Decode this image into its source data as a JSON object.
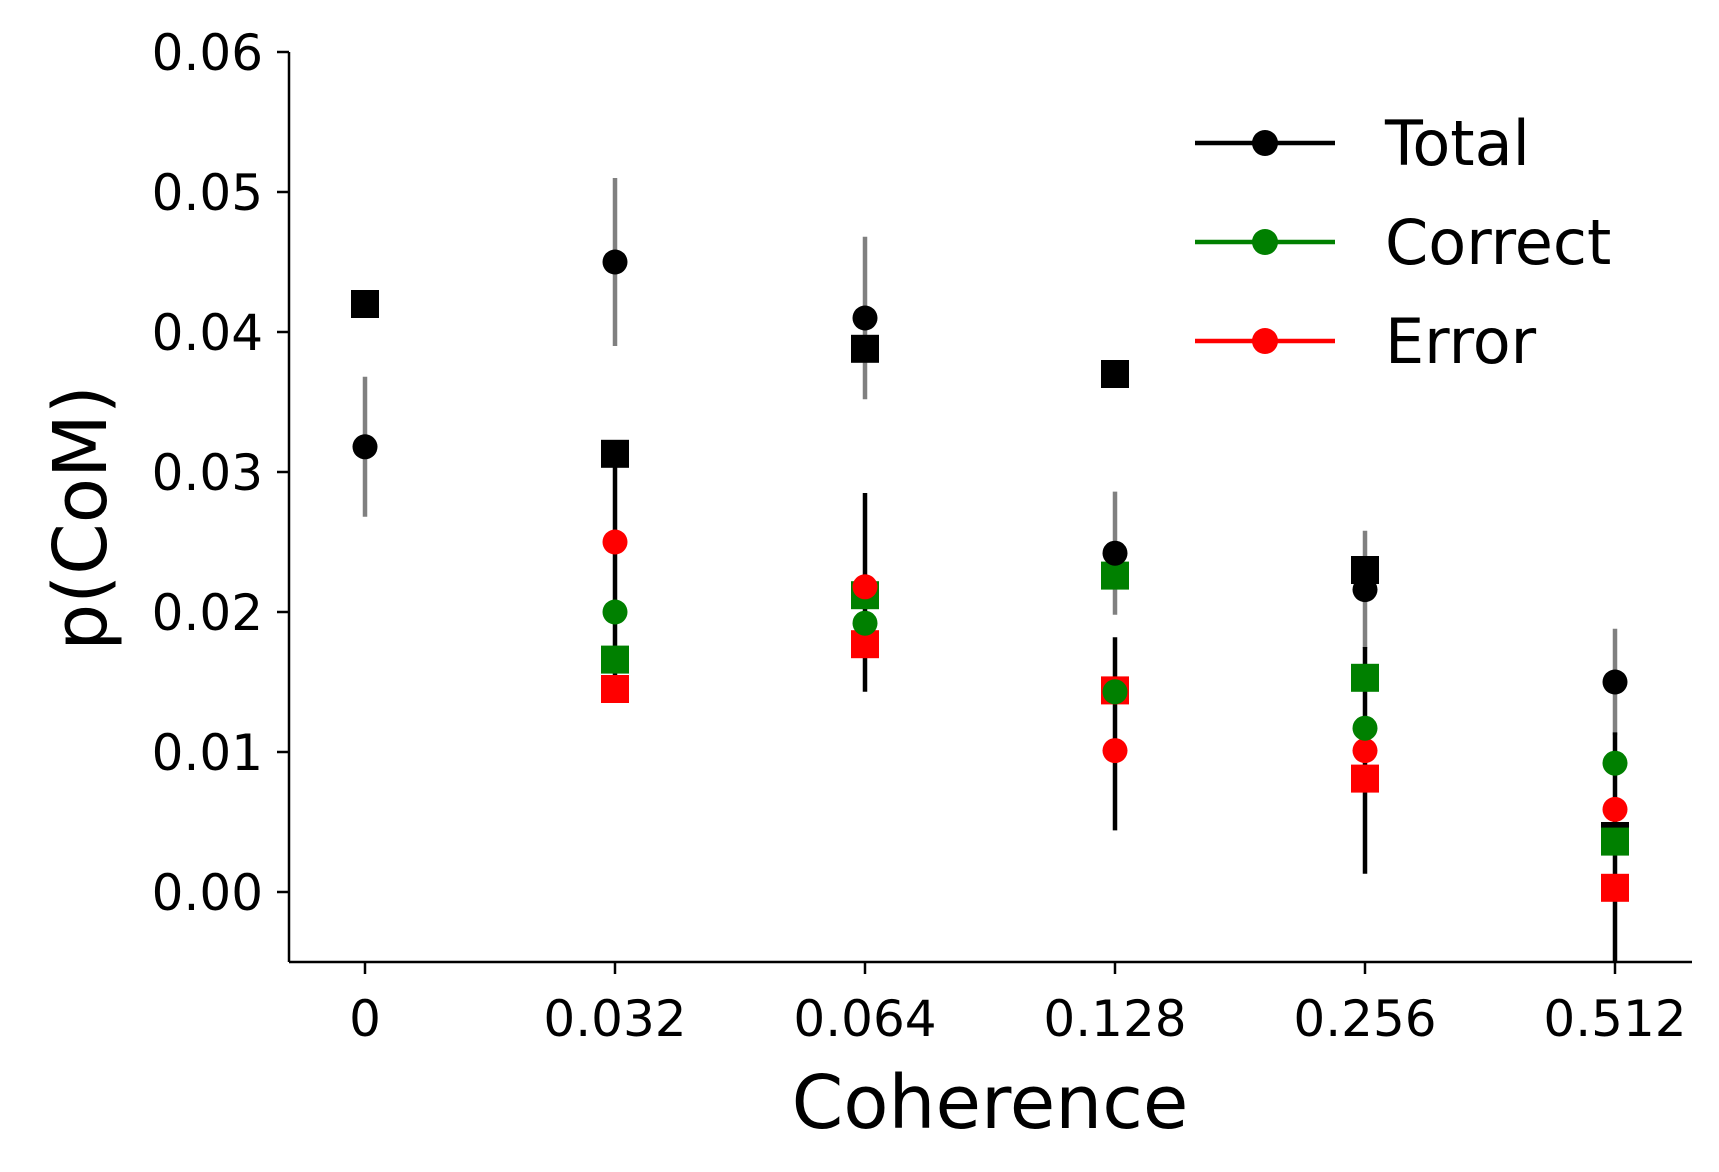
{
  "chart_data": {
    "type": "scatter",
    "xlabel": "Coherence",
    "ylabel": "p(CoM)",
    "categories": [
      "0",
      "0.032",
      "0.064",
      "0.128",
      "0.256",
      "0.512"
    ],
    "ylim": [
      -0.005,
      0.06
    ],
    "yticks": [
      0.0,
      0.01,
      0.02,
      0.03,
      0.04,
      0.05,
      0.06
    ],
    "ytick_labels": [
      "0.00",
      "0.01",
      "0.02",
      "0.03",
      "0.04",
      "0.05",
      "0.06"
    ],
    "grid": false,
    "legend_position": "top-right",
    "legend": [
      {
        "name": "Total",
        "color": "#000000"
      },
      {
        "name": "Correct",
        "color": "#008000"
      },
      {
        "name": "Error",
        "color": "#ff0000"
      }
    ],
    "series": [
      {
        "name": "Total",
        "marker": "circle",
        "color": "#000000",
        "values": [
          0.0318,
          0.045,
          0.041,
          0.0242,
          0.0216,
          0.015
        ],
        "error_low": [
          0.0268,
          0.039,
          0.0352,
          0.0198,
          0.0174,
          0.0112
        ],
        "error_high": [
          0.0368,
          0.051,
          0.0468,
          0.0286,
          0.0258,
          0.0188
        ],
        "error_color": "#808080"
      },
      {
        "name": "Correct",
        "marker": "circle",
        "color": "#008000",
        "values": [
          null,
          0.02,
          0.0192,
          0.0143,
          0.0117,
          0.0092
        ]
      },
      {
        "name": "Error",
        "marker": "circle",
        "color": "#ff0000",
        "values": [
          null,
          0.025,
          0.0218,
          0.0101,
          0.0101,
          0.0059
        ]
      },
      {
        "marker": "square",
        "color": "#000000",
        "values": [
          0.042,
          0.0313,
          0.0388,
          0.037,
          0.023,
          0.004
        ],
        "error_low": [
          null,
          0.0148,
          0.0143,
          0.0044,
          0.0013,
          -0.005
        ],
        "error_high": [
          null,
          0.0305,
          0.0285,
          0.0182,
          0.0175,
          0.0114
        ],
        "error_color": "#000000"
      },
      {
        "marker": "square",
        "color": "#008000",
        "values": [
          null,
          0.0166,
          0.0212,
          0.0226,
          0.0153,
          0.0036
        ]
      },
      {
        "marker": "square",
        "color": "#ff0000",
        "values": [
          null,
          0.0145,
          0.0177,
          0.0144,
          0.0081,
          0.0003
        ]
      }
    ]
  }
}
